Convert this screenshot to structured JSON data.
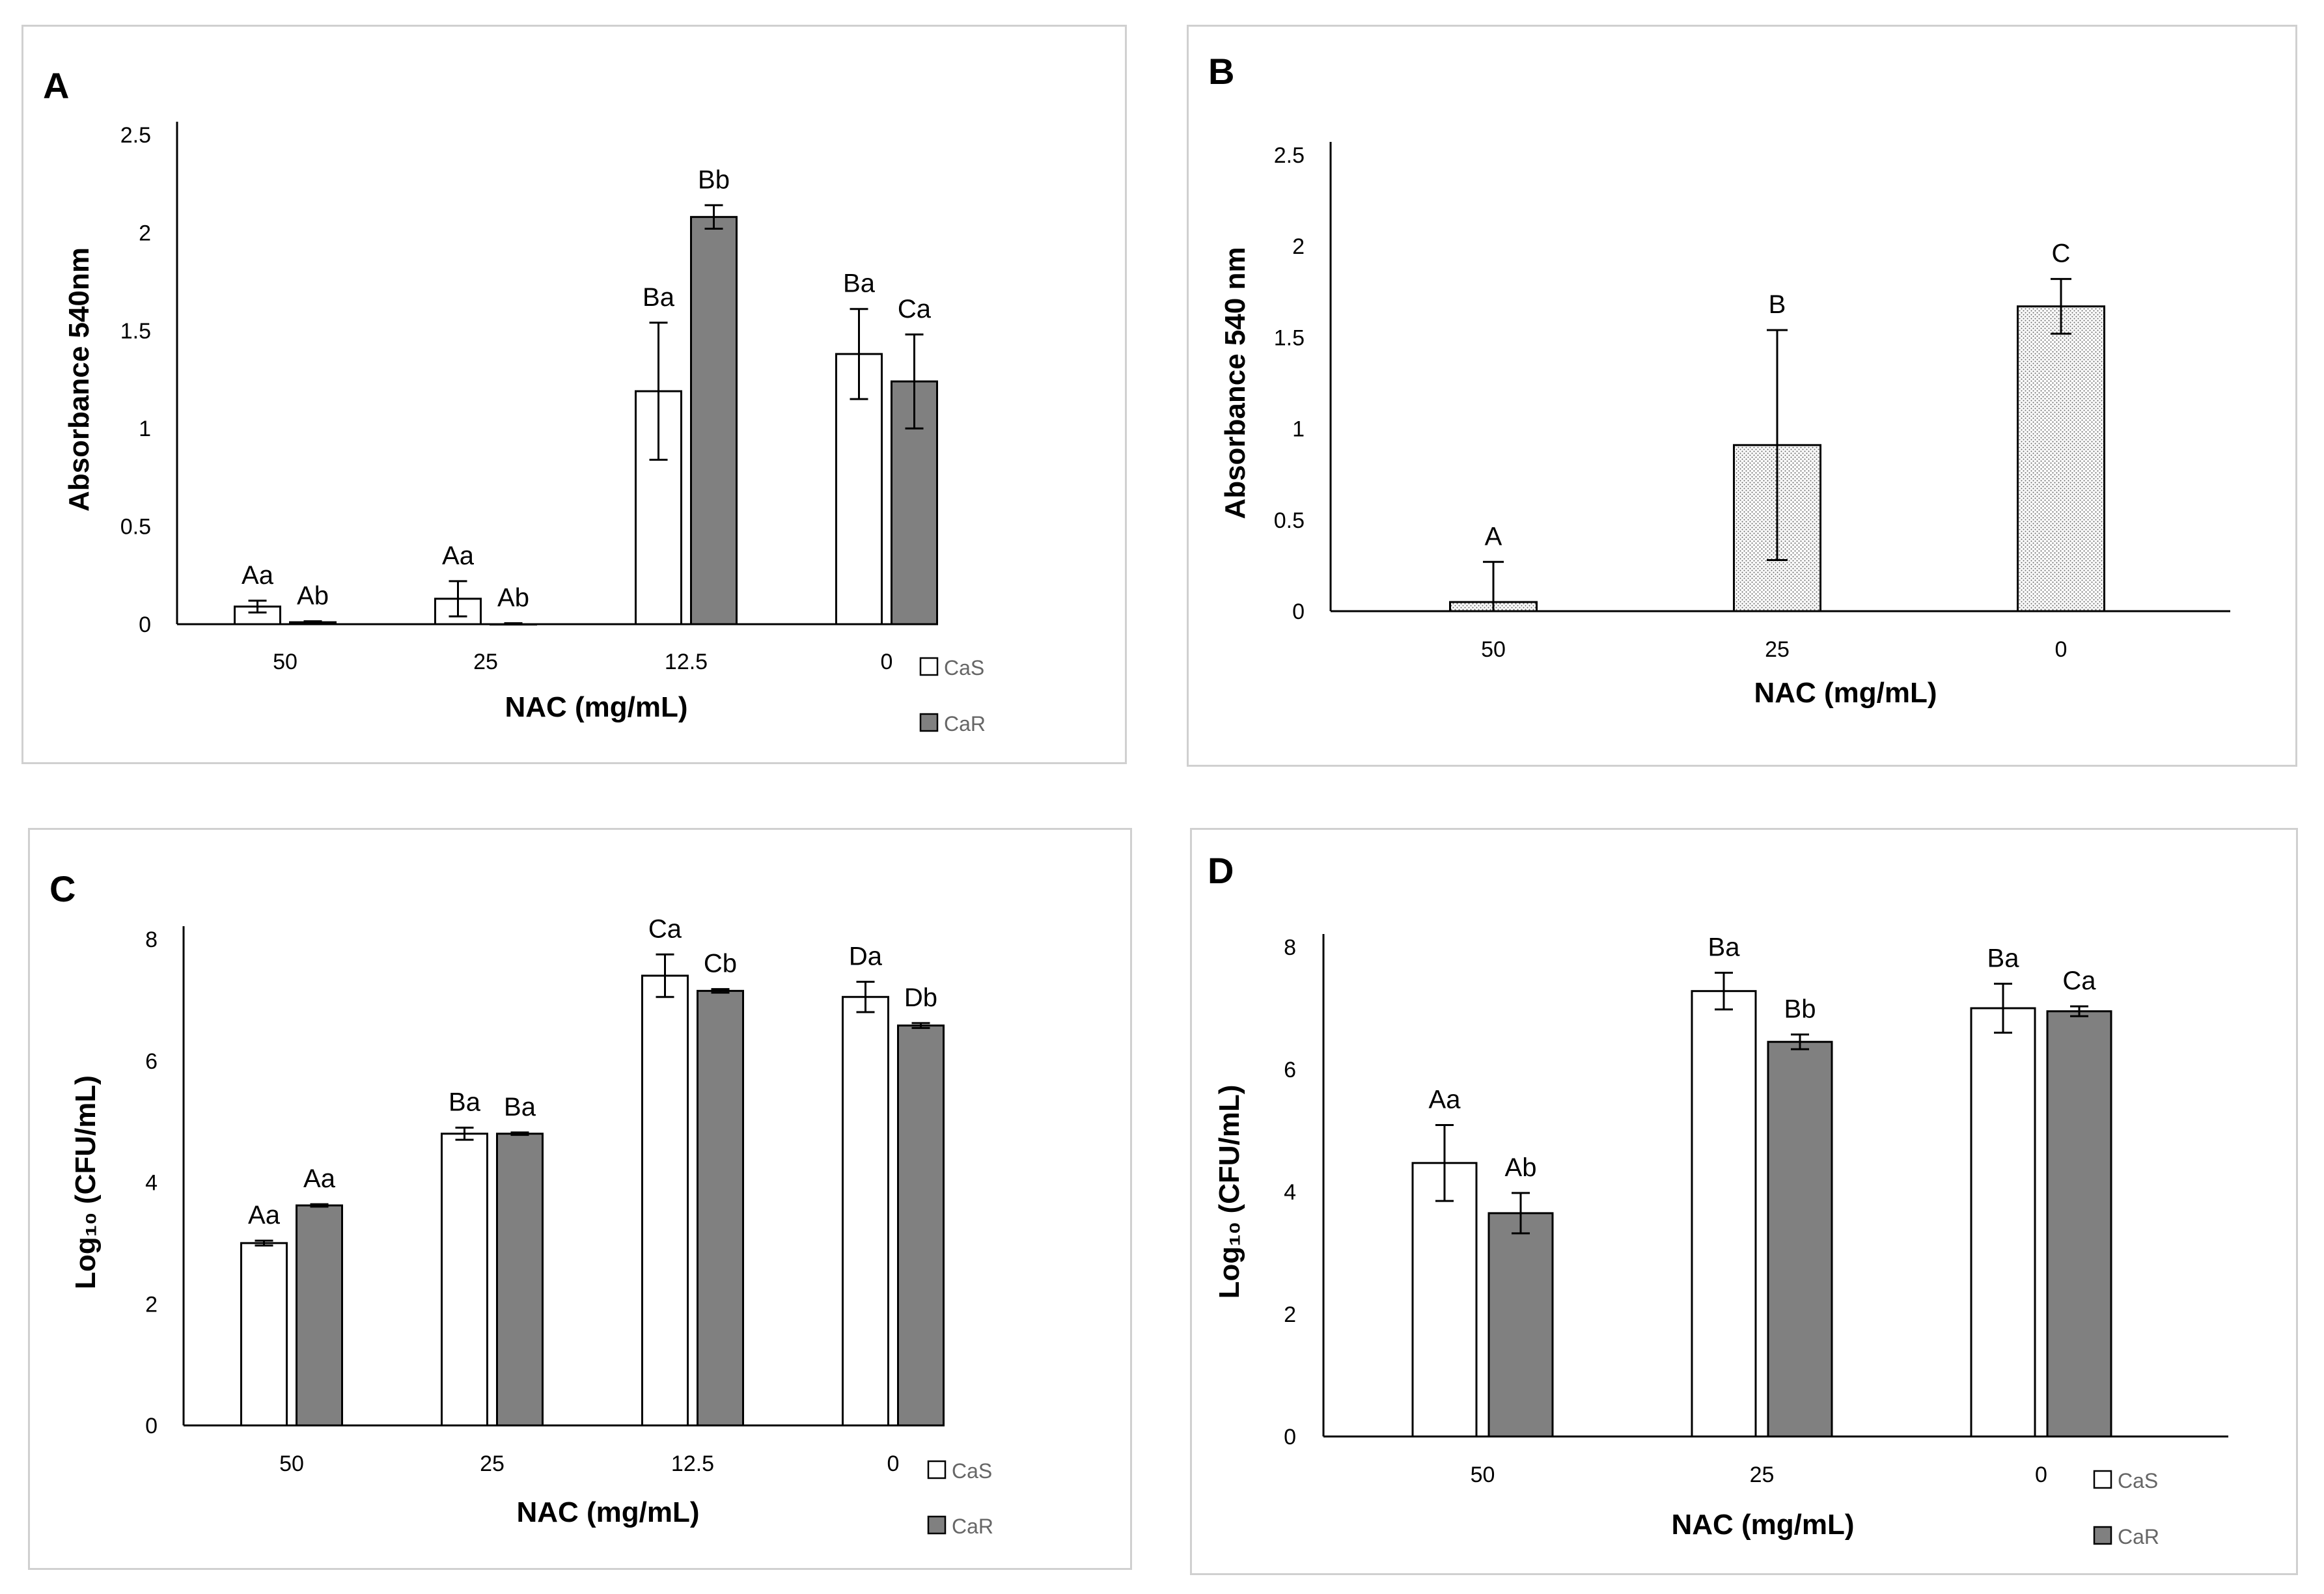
{
  "colors": {
    "cas": "#ffffff",
    "car": "#808080",
    "dotted": "#e8e8e8",
    "axis": "#000000",
    "border": "#d0d0d0"
  },
  "chart_data": [
    {
      "panel": "A",
      "type": "bar",
      "ylabel": "Absorbance 540nm",
      "xlabel": "NAC (mg/mL)",
      "ylim": [
        0,
        2.5
      ],
      "yticks": [
        "0",
        "0.5",
        "1",
        "1.5",
        "2",
        "2.5"
      ],
      "categories": [
        "50",
        "25",
        "12.5",
        "0"
      ],
      "legend": [
        "CaS",
        "CaR"
      ],
      "series": [
        {
          "name": "CaS",
          "values": [
            0.09,
            0.13,
            1.19,
            1.38
          ],
          "errors": [
            0.03,
            0.09,
            0.35,
            0.23
          ],
          "labels": [
            "Aa",
            "Aa",
            "Ba",
            "Ba"
          ]
        },
        {
          "name": "CaR",
          "values": [
            0.01,
            0.0,
            2.08,
            1.24
          ],
          "errors": [
            0.005,
            0.005,
            0.06,
            0.24
          ],
          "labels": [
            "Ab",
            "Ab",
            "Bb",
            "Ca"
          ]
        }
      ]
    },
    {
      "panel": "B",
      "type": "bar",
      "ylabel": "Absorbance 540 nm",
      "xlabel": "NAC (mg/mL)",
      "ylim": [
        0,
        2.5
      ],
      "yticks": [
        "0",
        "0.5",
        "1",
        "1.5",
        "2",
        "2.5"
      ],
      "categories": [
        "50",
        "25",
        "0"
      ],
      "legend": [],
      "series": [
        {
          "name": "",
          "values": [
            0.05,
            0.91,
            1.67
          ],
          "errors": [
            0.22,
            0.63,
            0.15
          ],
          "labels": [
            "A",
            "B",
            "C"
          ]
        }
      ]
    },
    {
      "panel": "C",
      "type": "bar",
      "ylabel": "Log₁₀ (CFU/mL)",
      "xlabel": "NAC (mg/mL)",
      "ylim": [
        0,
        8
      ],
      "yticks": [
        "0",
        "2",
        "4",
        "6",
        "8"
      ],
      "categories": [
        "50",
        "25",
        "12.5",
        "0"
      ],
      "legend": [
        "CaS",
        "CaR"
      ],
      "series": [
        {
          "name": "CaS",
          "values": [
            3.0,
            4.8,
            7.4,
            7.05
          ],
          "errors": [
            0.04,
            0.1,
            0.35,
            0.25
          ],
          "labels": [
            "Aa",
            "Ba",
            "Ca",
            "Da"
          ]
        },
        {
          "name": "CaR",
          "values": [
            3.62,
            4.8,
            7.15,
            6.58
          ],
          "errors": [
            0.02,
            0.02,
            0.03,
            0.04
          ],
          "labels": [
            "Aa",
            "Ba",
            "Cb",
            "Db"
          ]
        }
      ]
    },
    {
      "panel": "D",
      "type": "bar",
      "ylabel": "Log₁₀ (CFU/mL)",
      "xlabel": "NAC (mg/mL)",
      "ylim": [
        0,
        8
      ],
      "yticks": [
        "0",
        "2",
        "4",
        "6",
        "8"
      ],
      "categories": [
        "50",
        "25",
        "0"
      ],
      "legend": [
        "CaS",
        "CaR"
      ],
      "series": [
        {
          "name": "CaS",
          "values": [
            4.47,
            7.28,
            7.0
          ],
          "errors": [
            0.62,
            0.3,
            0.4
          ],
          "labels": [
            "Aa",
            "Ba",
            "Ba"
          ]
        },
        {
          "name": "CaR",
          "values": [
            3.65,
            6.45,
            6.95
          ],
          "errors": [
            0.33,
            0.12,
            0.08
          ],
          "labels": [
            "Ab",
            "Bb",
            "Ca"
          ]
        }
      ]
    }
  ]
}
